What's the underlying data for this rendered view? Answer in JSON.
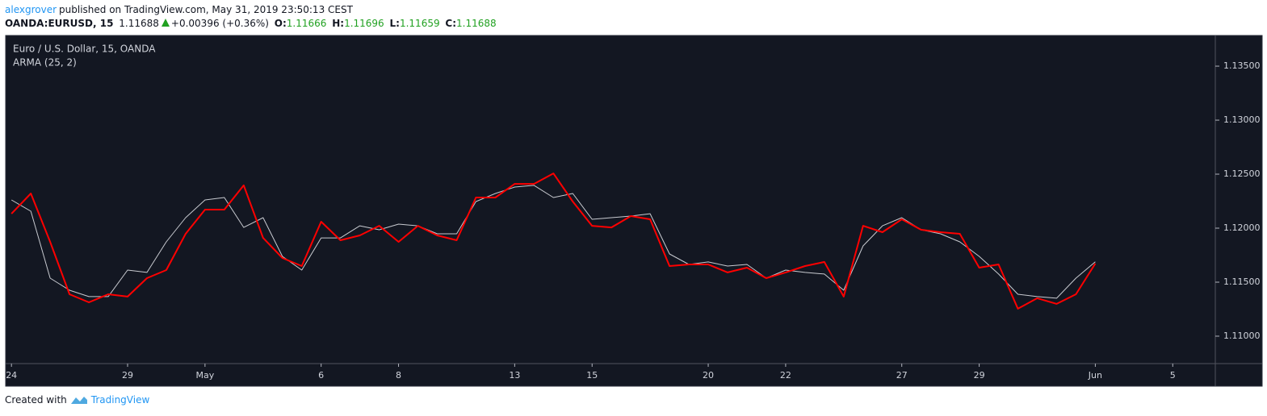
{
  "header": {
    "author": "alexgrover",
    "published": "published on TradingView.com, May 31, 2019 23:50:13 CEST",
    "symbol": "OANDA:EURUSD, 15",
    "last": "1.11688",
    "change": "+0.00396 (+0.36%)",
    "o_label": "O:",
    "o": "1.11666",
    "h_label": "H:",
    "h": "1.11696",
    "l_label": "L:",
    "l": "1.11659",
    "c_label": "C:",
    "c": "1.11688"
  },
  "footer": {
    "text": "Created with",
    "brand": "TradingView"
  },
  "chart_data": {
    "type": "line",
    "x": [
      0,
      0.5,
      1,
      1.5,
      2,
      2.5,
      3,
      3.5,
      4,
      4.5,
      5,
      5.5,
      6,
      6.5,
      7,
      7.5,
      8,
      8.5,
      9,
      9.5,
      10,
      10.5,
      11,
      11.5,
      12,
      12.5,
      13,
      13.5,
      14,
      14.5,
      15,
      15.5,
      16,
      16.5,
      17,
      17.5,
      18,
      18.5,
      19,
      19.5,
      20,
      20.5,
      21,
      21.5,
      22,
      22.5,
      23,
      23.5,
      24,
      24.5,
      25,
      25.5,
      26,
      26.5,
      27,
      27.5,
      28
    ],
    "series": [
      {
        "name": "Euro / U.S. Dollar, 15, OANDA",
        "color": "#c8cad0",
        "values": [
          1.12261,
          1.12157,
          1.11537,
          1.11425,
          1.11366,
          1.11366,
          1.11612,
          1.1159,
          1.11873,
          1.12097,
          1.12261,
          1.12284,
          1.12007,
          1.12097,
          1.11739,
          1.11612,
          1.1191,
          1.1191,
          1.12022,
          1.11985,
          1.12037,
          1.12022,
          1.11948,
          1.11948,
          1.12246,
          1.12321,
          1.12381,
          1.12396,
          1.12284,
          1.12321,
          1.12082,
          1.12097,
          1.12112,
          1.12134,
          1.11761,
          1.11664,
          1.11687,
          1.11649,
          1.11664,
          1.11537,
          1.11612,
          1.1159,
          1.11575,
          1.11425,
          1.11836,
          1.12022,
          1.12097,
          1.11985,
          1.11948,
          1.11873,
          1.11739,
          1.11575,
          1.11388,
          1.11366,
          1.11351,
          1.11537,
          1.11688
        ]
      },
      {
        "name": "ARMA (25, 2)",
        "color": "#ff0000",
        "values": [
          1.12134,
          1.12321,
          1.11873,
          1.11388,
          1.11313,
          1.11388,
          1.11366,
          1.11537,
          1.11612,
          1.11948,
          1.12172,
          1.12172,
          1.12396,
          1.1191,
          1.11724,
          1.11649,
          1.1206,
          1.11888,
          1.11933,
          1.12022,
          1.11873,
          1.12022,
          1.11933,
          1.11888,
          1.12284,
          1.12284,
          1.1241,
          1.1241,
          1.12507,
          1.12246,
          1.12022,
          1.12007,
          1.12112,
          1.12082,
          1.11649,
          1.11664,
          1.11664,
          1.1159,
          1.11634,
          1.11537,
          1.1159,
          1.11649,
          1.11687,
          1.11366,
          1.12022,
          1.11963,
          1.12082,
          1.11985,
          1.11963,
          1.11948,
          1.11634,
          1.11664,
          1.11254,
          1.11351,
          1.11299,
          1.11388,
          1.11672
        ]
      }
    ],
    "xlim": [
      -0.15,
      31.1
    ],
    "xticks": [
      {
        "value": 0,
        "label": "24"
      },
      {
        "value": 3,
        "label": "29"
      },
      {
        "value": 5,
        "label": "May"
      },
      {
        "value": 8,
        "label": "6"
      },
      {
        "value": 10,
        "label": "8"
      },
      {
        "value": 13,
        "label": "13"
      },
      {
        "value": 15,
        "label": "15"
      },
      {
        "value": 18,
        "label": "20"
      },
      {
        "value": 20,
        "label": "22"
      },
      {
        "value": 23,
        "label": "27"
      },
      {
        "value": 25,
        "label": "29"
      },
      {
        "value": 28,
        "label": "Jun"
      },
      {
        "value": 30,
        "label": "5"
      }
    ],
    "ylim": [
      1.10746,
      1.13784
    ],
    "yticks": [
      {
        "value": 1.11,
        "label": "1.11000"
      },
      {
        "value": 1.115,
        "label": "1.11500"
      },
      {
        "value": 1.12,
        "label": "1.12000"
      },
      {
        "value": 1.125,
        "label": "1.12500"
      },
      {
        "value": 1.13,
        "label": "1.13000"
      },
      {
        "value": 1.135,
        "label": "1.13500"
      }
    ],
    "grid": false,
    "legend": "top-left",
    "background": "#131722"
  }
}
